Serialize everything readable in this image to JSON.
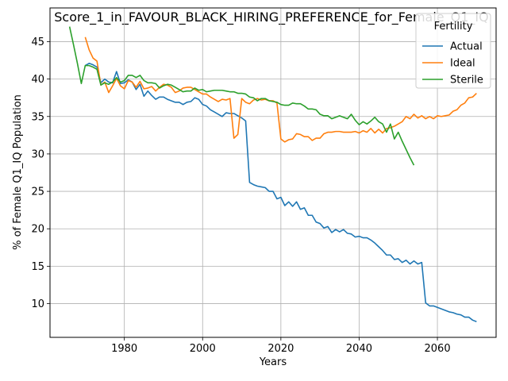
{
  "chart_data": {
    "type": "line",
    "title": "Score_1_in_FAVOUR_BLACK_HIRING_PREFERENCE_for_Female_Q1_IQ",
    "xlabel": "Years",
    "ylabel": "% of Female Q1_IQ Population",
    "xlim": [
      1961,
      2075
    ],
    "ylim": [
      5.5,
      49.5
    ],
    "xticks": [
      1980,
      2000,
      2020,
      2040,
      2060
    ],
    "yticks": [
      10,
      15,
      20,
      25,
      30,
      35,
      40,
      45
    ],
    "grid": true,
    "legend": {
      "title": "Fertility",
      "placement": "top-right"
    },
    "series": [
      {
        "name": "Actual",
        "color": "#1f77b4",
        "x": [
          1970,
          1971,
          1972,
          1973,
          1974,
          1975,
          1976,
          1977,
          1978,
          1979,
          1980,
          1981,
          1982,
          1983,
          1984,
          1985,
          1986,
          1987,
          1988,
          1989,
          1990,
          1991,
          1992,
          1993,
          1994,
          1995,
          1996,
          1997,
          1998,
          1999,
          2000,
          2001,
          2002,
          2003,
          2004,
          2005,
          2006,
          2007,
          2008,
          2009,
          2010,
          2011,
          2012,
          2013,
          2014,
          2015,
          2016,
          2017,
          2018,
          2019,
          2020,
          2021,
          2022,
          2023,
          2024,
          2025,
          2026,
          2027,
          2028,
          2029,
          2030,
          2031,
          2032,
          2033,
          2034,
          2035,
          2036,
          2037,
          2038,
          2039,
          2040,
          2041,
          2042,
          2043,
          2044,
          2045,
          2046,
          2047,
          2048,
          2049,
          2050,
          2051,
          2052,
          2053,
          2054,
          2055,
          2056,
          2057,
          2058,
          2059,
          2060,
          2061,
          2062,
          2063,
          2064,
          2065,
          2066,
          2067,
          2068,
          2069,
          2070
        ],
        "y": [
          41.8,
          42.1,
          41.9,
          41.6,
          39.5,
          40.0,
          39.6,
          39.5,
          41.0,
          39.4,
          39.5,
          39.9,
          39.6,
          38.6,
          39.3,
          37.7,
          38.4,
          37.8,
          37.3,
          37.6,
          37.6,
          37.3,
          37.1,
          36.9,
          36.9,
          36.6,
          36.9,
          37.0,
          37.5,
          37.3,
          36.6,
          36.4,
          35.9,
          35.6,
          35.3,
          35.0,
          35.5,
          35.4,
          35.4,
          35.1,
          34.8,
          34.4,
          26.2,
          25.9,
          25.7,
          25.6,
          25.5,
          25.0,
          25.0,
          24.0,
          24.2,
          23.1,
          23.6,
          23.0,
          23.6,
          22.6,
          22.8,
          21.8,
          21.8,
          20.9,
          20.7,
          20.1,
          20.3,
          19.5,
          19.9,
          19.6,
          19.9,
          19.4,
          19.3,
          18.9,
          19.0,
          18.8,
          18.8,
          18.5,
          18.1,
          17.6,
          17.1,
          16.5,
          16.5,
          15.9,
          16.0,
          15.5,
          15.8,
          15.3,
          15.7,
          15.3,
          15.5,
          10.1,
          9.7,
          9.7,
          9.5,
          9.3,
          9.1,
          8.9,
          8.8,
          8.6,
          8.5,
          8.2,
          8.2,
          7.8,
          7.6
        ]
      },
      {
        "name": "Ideal",
        "color": "#ff7f0e",
        "x": [
          1970,
          1971,
          1972,
          1973,
          1974,
          1975,
          1976,
          1977,
          1978,
          1979,
          1980,
          1981,
          1982,
          1983,
          1984,
          1985,
          1986,
          1987,
          1988,
          1989,
          1990,
          1991,
          1992,
          1993,
          1994,
          1995,
          1996,
          1997,
          1998,
          1999,
          2000,
          2001,
          2002,
          2003,
          2004,
          2005,
          2006,
          2007,
          2008,
          2009,
          2010,
          2011,
          2012,
          2013,
          2014,
          2015,
          2016,
          2017,
          2018,
          2019,
          2020,
          2021,
          2022,
          2023,
          2024,
          2025,
          2026,
          2027,
          2028,
          2029,
          2030,
          2031,
          2032,
          2033,
          2034,
          2035,
          2036,
          2037,
          2038,
          2039,
          2040,
          2041,
          2042,
          2043,
          2044,
          2045,
          2046,
          2047,
          2048,
          2049,
          2050,
          2051,
          2052,
          2053,
          2054,
          2055,
          2056,
          2057,
          2058,
          2059,
          2060,
          2061,
          2062,
          2063,
          2064,
          2065,
          2066,
          2067,
          2068,
          2069,
          2070
        ],
        "y": [
          45.6,
          43.9,
          42.8,
          42.4,
          39.2,
          39.6,
          38.2,
          39.1,
          40.1,
          39.1,
          38.7,
          39.8,
          39.6,
          38.9,
          39.7,
          38.7,
          38.8,
          39.0,
          38.4,
          38.9,
          39.3,
          39.2,
          38.9,
          38.2,
          38.4,
          38.8,
          38.9,
          38.9,
          38.6,
          38.3,
          38.0,
          38.0,
          37.6,
          37.3,
          37.0,
          37.3,
          37.2,
          37.4,
          32.1,
          32.6,
          37.4,
          36.9,
          36.7,
          37.2,
          37.4,
          37.2,
          37.3,
          37.1,
          37.1,
          36.8,
          32.0,
          31.6,
          31.9,
          32.0,
          32.7,
          32.6,
          32.3,
          32.3,
          31.8,
          32.1,
          32.1,
          32.7,
          32.9,
          32.9,
          33.0,
          33.0,
          32.9,
          32.9,
          32.9,
          33.0,
          32.8,
          33.1,
          32.9,
          33.4,
          32.8,
          33.3,
          32.8,
          33.4,
          33.5,
          33.7,
          34.0,
          34.3,
          35.0,
          34.7,
          35.3,
          34.8,
          35.1,
          34.7,
          35.0,
          34.7,
          35.1,
          35.0,
          35.1,
          35.2,
          35.7,
          35.9,
          36.5,
          36.8,
          37.5,
          37.6,
          38.1
        ]
      },
      {
        "name": "Sterile",
        "color": "#2ca02c",
        "x": [
          1966,
          1967,
          1968,
          1969,
          1970,
          1971,
          1972,
          1973,
          1974,
          1975,
          1976,
          1977,
          1978,
          1979,
          1980,
          1981,
          1982,
          1983,
          1984,
          1985,
          1986,
          1987,
          1988,
          1989,
          1990,
          1991,
          1992,
          1993,
          1994,
          1995,
          1996,
          1997,
          1998,
          1999,
          2000,
          2001,
          2002,
          2003,
          2004,
          2005,
          2006,
          2007,
          2008,
          2009,
          2010,
          2011,
          2012,
          2013,
          2014,
          2015,
          2016,
          2017,
          2018,
          2019,
          2020,
          2021,
          2022,
          2023,
          2024,
          2025,
          2026,
          2027,
          2028,
          2029,
          2030,
          2031,
          2032,
          2033,
          2034,
          2035,
          2036,
          2037,
          2038,
          2039,
          2040,
          2041,
          2042,
          2043,
          2044,
          2045,
          2046,
          2047,
          2048,
          2049,
          2050,
          2051,
          2052,
          2053,
          2054
        ],
        "y": [
          47.0,
          44.6,
          42.1,
          39.4,
          41.8,
          41.8,
          41.6,
          41.3,
          39.2,
          39.5,
          39.3,
          39.6,
          40.2,
          39.6,
          39.8,
          40.5,
          40.5,
          40.2,
          40.5,
          39.8,
          39.5,
          39.5,
          39.4,
          38.8,
          39.1,
          39.3,
          39.2,
          38.9,
          38.6,
          38.3,
          38.4,
          38.4,
          38.8,
          38.5,
          38.6,
          38.3,
          38.4,
          38.5,
          38.5,
          38.5,
          38.4,
          38.3,
          38.3,
          38.1,
          38.1,
          38.0,
          37.6,
          37.5,
          37.1,
          37.4,
          37.4,
          37.1,
          37.0,
          36.9,
          36.6,
          36.5,
          36.5,
          36.8,
          36.7,
          36.7,
          36.4,
          36.0,
          36.0,
          35.9,
          35.3,
          35.1,
          35.1,
          34.7,
          34.9,
          35.1,
          34.9,
          34.7,
          35.3,
          34.5,
          33.9,
          34.3,
          34.0,
          34.4,
          34.9,
          34.3,
          34.0,
          32.9,
          34.0,
          32.0,
          32.9,
          31.7,
          30.6,
          29.5,
          28.5
        ]
      }
    ]
  }
}
